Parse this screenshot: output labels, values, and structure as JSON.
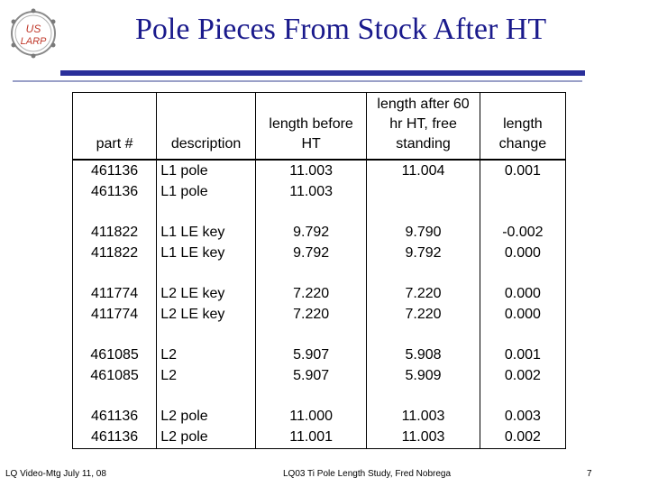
{
  "header": {
    "logo_text_top": "US",
    "logo_text_bottom": "LARP",
    "title": "Pole Pieces From Stock After HT"
  },
  "table": {
    "columns": [
      "part #",
      "description",
      "length before HT",
      "length after 60 hr HT, free standing",
      "length change"
    ],
    "groups": [
      [
        [
          "461136",
          "L1 pole",
          "11.003",
          "11.004",
          "0.001"
        ],
        [
          "461136",
          "L1 pole",
          "11.003",
          "",
          ""
        ]
      ],
      [
        [
          "411822",
          "L1 LE key",
          "9.792",
          "9.790",
          "-0.002"
        ],
        [
          "411822",
          "L1 LE key",
          "9.792",
          "9.792",
          "0.000"
        ]
      ],
      [
        [
          "411774",
          "L2 LE key",
          "7.220",
          "7.220",
          "0.000"
        ],
        [
          "411774",
          "L2 LE key",
          "7.220",
          "7.220",
          "0.000"
        ]
      ],
      [
        [
          "461085",
          "L2",
          "5.907",
          "5.908",
          "0.001"
        ],
        [
          "461085",
          "L2",
          "5.907",
          "5.909",
          "0.002"
        ]
      ],
      [
        [
          "461136",
          "L2 pole",
          "11.000",
          "11.003",
          "0.003"
        ],
        [
          "461136",
          "L2 pole",
          "11.001",
          "11.003",
          "0.002"
        ]
      ]
    ]
  },
  "footer": {
    "left": "LQ Video-Mtg July 11, 08",
    "center": "LQ03 Ti Pole Length Study, Fred Nobrega",
    "page": "7"
  },
  "colors": {
    "title": "#1a1a8c",
    "rule": "#2a2f9a",
    "logo_ring": "#8a8a8a",
    "logo_text": "#c0392b"
  }
}
